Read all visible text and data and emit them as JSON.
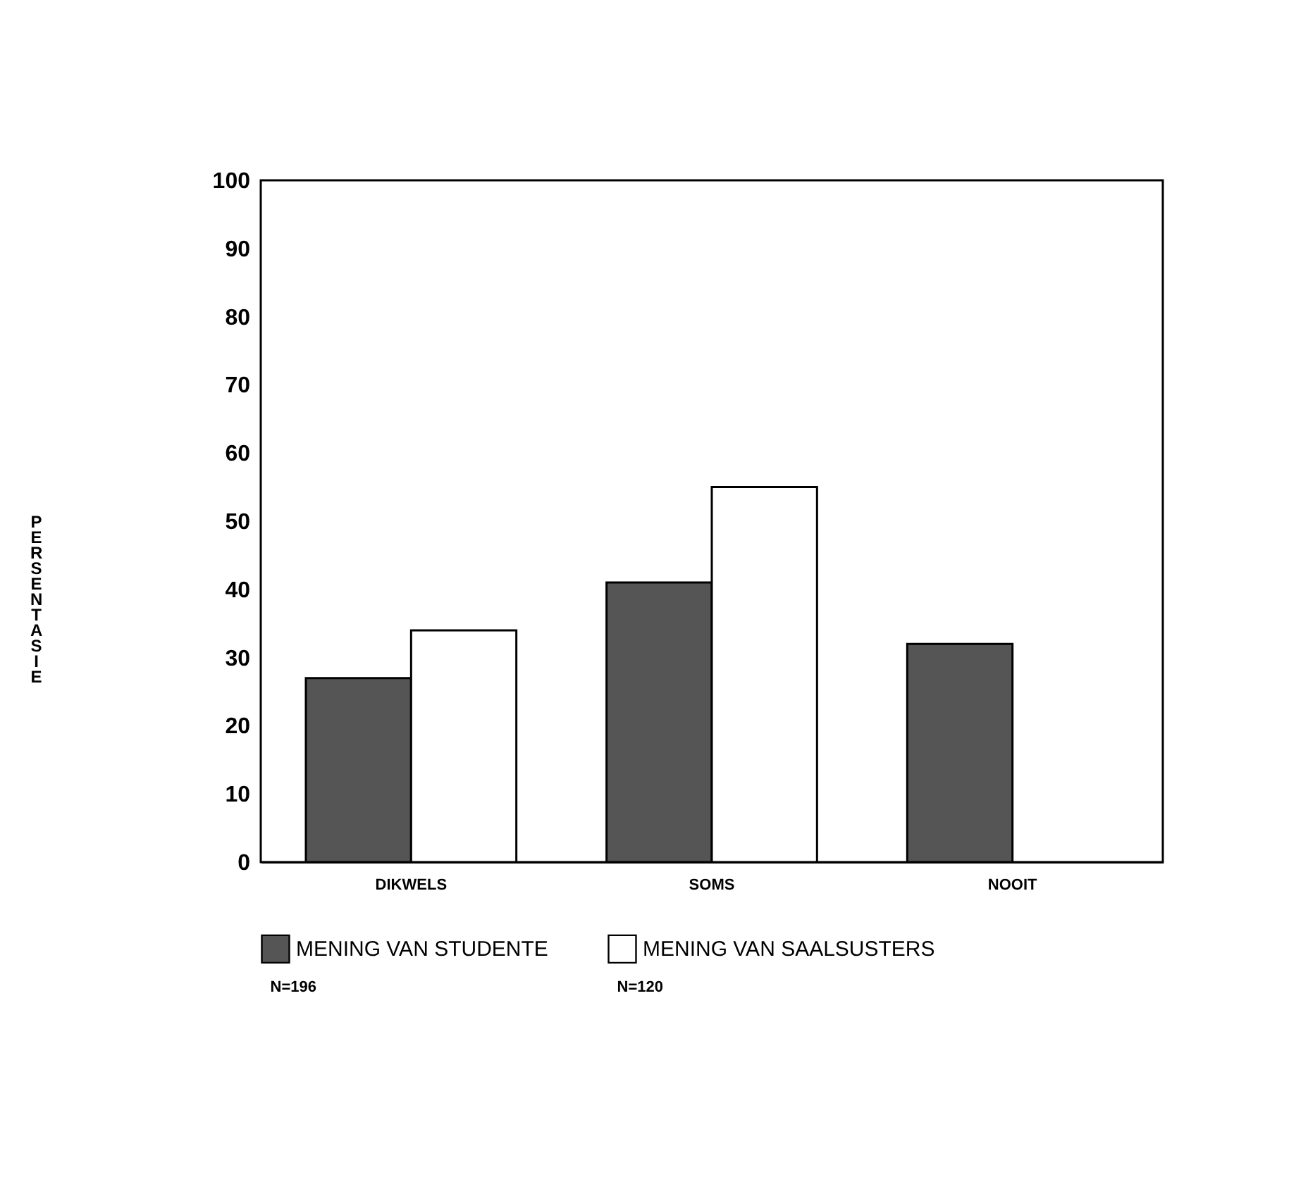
{
  "chart_data": {
    "type": "bar",
    "ylabel": "PERSENTASIE",
    "categories": [
      "DIKWELS",
      "SOMS",
      "NOOIT"
    ],
    "series": [
      {
        "name": "MENING VAN STUDENTE",
        "color": "#555555",
        "values": [
          27,
          41,
          32
        ]
      },
      {
        "name": "MENING VAN SAALSUSTERS",
        "color": "#ffffff",
        "values": [
          34,
          55,
          0
        ]
      }
    ],
    "ylim": [
      0,
      100
    ],
    "yticks": [
      0,
      10,
      20,
      30,
      40,
      50,
      60,
      70,
      80,
      90,
      100
    ],
    "grid": false,
    "legend": "bottom",
    "annotations": [
      "N=196",
      "N=120"
    ]
  }
}
